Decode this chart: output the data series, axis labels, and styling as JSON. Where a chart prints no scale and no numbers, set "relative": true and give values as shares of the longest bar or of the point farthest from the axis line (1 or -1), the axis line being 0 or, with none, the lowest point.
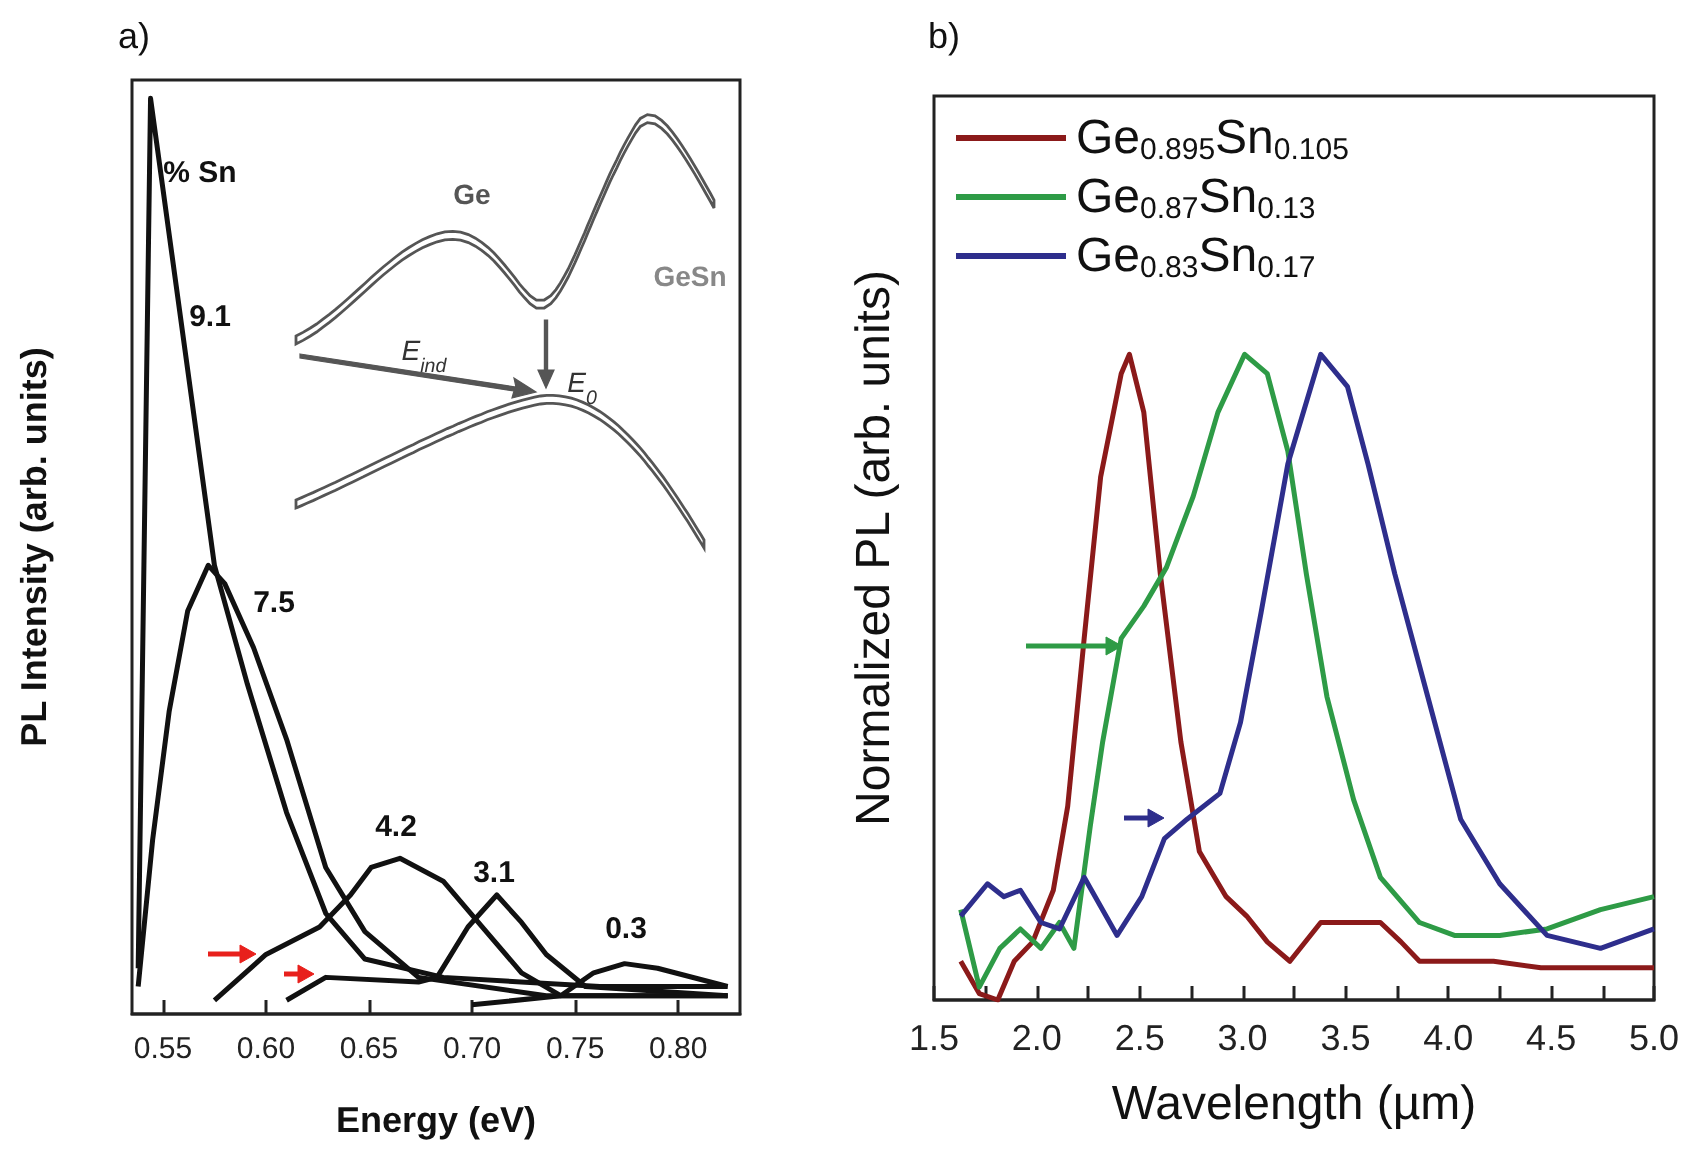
{
  "chart_data": [
    {
      "type": "line",
      "title": "a)",
      "xlabel": "Energy (eV)",
      "ylabel": "PL Intensity (arb. units)",
      "relative": true,
      "marker": "none",
      "grid": false,
      "legend": false,
      "xlim": [
        0.535,
        0.83
      ],
      "xticks": [
        0.55,
        {
          "value": 0.6,
          "label": "0.60"
        },
        0.65,
        {
          "value": 0.7,
          "label": "0.70"
        },
        0.75,
        {
          "value": 0.8,
          "label": "0.80"
        }
      ],
      "annotations": [
        "% Sn",
        "Ge",
        "GeSn",
        "E$_{ind}$",
        "E$_{0}$",
        "9.1",
        "7.5",
        "4.2",
        "3.1",
        "0.3"
      ],
      "series": [
        {
          "color": "#111111",
          "x": [
            0.538,
            0.544,
            0.575,
            0.591,
            0.61,
            0.629,
            0.648,
            0.686,
            0.762,
            0.824
          ],
          "values": [
            0.05,
            1.0,
            0.49,
            0.36,
            0.22,
            0.11,
            0.06,
            0.04,
            0.03,
            0.03
          ]
        },
        {
          "color": "#111111",
          "x": [
            0.538,
            0.545,
            0.553,
            0.562,
            0.572,
            0.58,
            0.594,
            0.61,
            0.629,
            0.648,
            0.674,
            0.736,
            0.824
          ],
          "values": [
            0.03,
            0.19,
            0.33,
            0.44,
            0.49,
            0.47,
            0.4,
            0.3,
            0.16,
            0.09,
            0.04,
            0.02,
            0.02
          ]
        },
        {
          "color": "#111111",
          "x": [
            0.575,
            0.6,
            0.626,
            0.641,
            0.651,
            0.665,
            0.686,
            0.705,
            0.724,
            0.743,
            0.824
          ],
          "values": [
            0.015,
            0.065,
            0.095,
            0.13,
            0.16,
            0.17,
            0.145,
            0.095,
            0.045,
            0.02,
            0.02
          ]
        },
        {
          "color": "#111111",
          "x": [
            0.61,
            0.629,
            0.674,
            0.683,
            0.698,
            0.712,
            0.724,
            0.736,
            0.755,
            0.824
          ],
          "values": [
            0.015,
            0.04,
            0.035,
            0.04,
            0.095,
            0.13,
            0.1,
            0.065,
            0.03,
            0.02
          ]
        },
        {
          "color": "#111111",
          "x": [
            0.7,
            0.743,
            0.759,
            0.774,
            0.79,
            0.824
          ],
          "values": [
            0.01,
            0.02,
            0.045,
            0.055,
            0.05,
            0.03
          ]
        }
      ]
    },
    {
      "type": "line",
      "title": "b)",
      "xlabel": "Wavelength (µm)",
      "ylabel": "Normalized PL (arb. units)",
      "relative": true,
      "marker": "none",
      "grid": false,
      "legend": "top left",
      "xlim": [
        1.5,
        5.0
      ],
      "xticks": [
        1.5,
        {
          "value": 1.75,
          "label": null
        },
        {
          "value": 2,
          "label": "2.0"
        },
        {
          "value": 2.25,
          "label": null
        },
        2.5,
        {
          "value": 2.75,
          "label": null
        },
        {
          "value": 3,
          "label": "3.0"
        },
        {
          "value": 3.25,
          "label": null
        },
        3.5,
        {
          "value": 3.75,
          "label": null
        },
        {
          "value": 4,
          "label": "4.0"
        },
        {
          "value": 4.25,
          "label": null
        },
        4.5,
        {
          "value": 4.75,
          "label": null
        },
        {
          "value": 5,
          "label": "5.0"
        }
      ],
      "series": [
        {
          "name": "Ge$_{0.895}$Sn$_{0.105}$",
          "color": "#8b1a1a",
          "x": [
            1.63,
            1.72,
            1.81,
            1.89,
            1.98,
            2.08,
            2.15,
            2.23,
            2.31,
            2.41,
            2.45,
            2.52,
            2.6,
            2.7,
            2.79,
            2.92,
            3.02,
            3.12,
            3.23,
            3.38,
            3.51,
            3.67,
            3.77,
            3.86,
            4.03,
            4.22,
            4.45,
            5.0
          ],
          "values": [
            0.06,
            0.01,
            0.0,
            0.06,
            0.09,
            0.17,
            0.3,
            0.56,
            0.81,
            0.97,
            1.0,
            0.91,
            0.66,
            0.4,
            0.23,
            0.16,
            0.13,
            0.09,
            0.06,
            0.12,
            0.12,
            0.12,
            0.09,
            0.06,
            0.06,
            0.06,
            0.05,
            0.05
          ]
        },
        {
          "name": "Ge$_{0.87}$Sn$_{0.13}$",
          "color": "#2e9b46",
          "x": [
            1.63,
            1.72,
            1.82,
            1.92,
            2.02,
            2.11,
            2.18,
            2.26,
            2.32,
            2.41,
            2.52,
            2.63,
            2.76,
            2.88,
            3.01,
            3.12,
            3.22,
            3.31,
            3.41,
            3.54,
            3.67,
            3.86,
            4.03,
            4.25,
            4.48,
            4.74,
            5.0
          ],
          "values": [
            0.14,
            0.02,
            0.08,
            0.11,
            0.08,
            0.12,
            0.08,
            0.27,
            0.4,
            0.56,
            0.61,
            0.67,
            0.78,
            0.91,
            1.0,
            0.97,
            0.85,
            0.66,
            0.47,
            0.31,
            0.19,
            0.12,
            0.1,
            0.1,
            0.11,
            0.14,
            0.16
          ]
        },
        {
          "name": "Ge$_{0.83}$Sn$_{0.17}$",
          "color": "#2e2e8c",
          "x": [
            1.63,
            1.76,
            1.84,
            1.92,
            2.02,
            2.11,
            2.23,
            2.39,
            2.51,
            2.62,
            2.73,
            2.89,
            2.99,
            3.09,
            3.22,
            3.38,
            3.51,
            3.61,
            3.74,
            3.9,
            4.06,
            4.25,
            4.48,
            4.74,
            5.0
          ],
          "values": [
            0.13,
            0.18,
            0.16,
            0.17,
            0.12,
            0.11,
            0.19,
            0.1,
            0.16,
            0.25,
            0.28,
            0.32,
            0.43,
            0.6,
            0.83,
            1.0,
            0.95,
            0.83,
            0.66,
            0.47,
            0.28,
            0.18,
            0.1,
            0.08,
            0.11
          ]
        }
      ]
    }
  ]
}
